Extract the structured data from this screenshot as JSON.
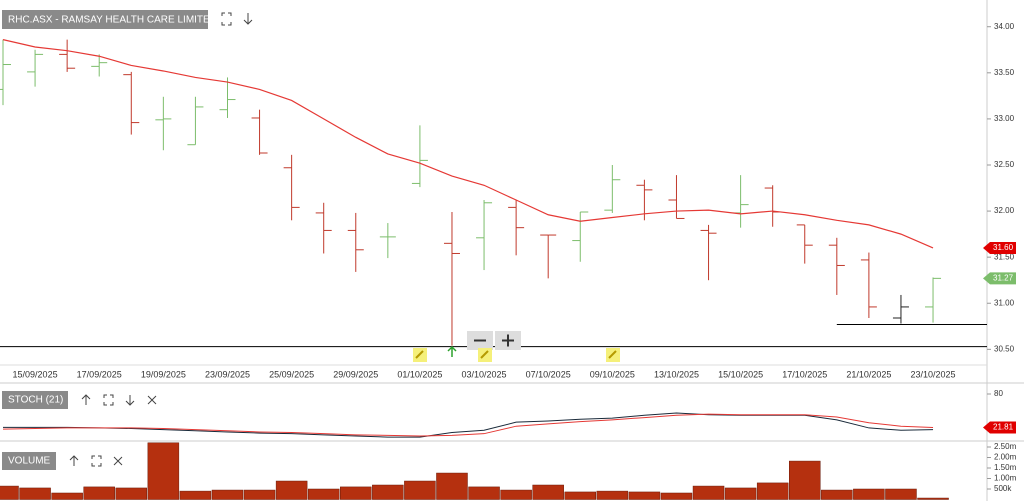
{
  "chart_data": [
    {
      "type": "ohlc",
      "title": "RHC.ASX - RAMSAY HEALTH CARE LIMITED",
      "categories": [
        null,
        "15/09/2025",
        null,
        "17/09/2025",
        null,
        "19/09/2025",
        null,
        "23/09/2025",
        null,
        "25/09/2025",
        null,
        "29/09/2025",
        null,
        "01/10/2025",
        null,
        "03/10/2025",
        null,
        "07/10/2025",
        null,
        "09/10/2025",
        null,
        "13/10/2025",
        null,
        "15/10/2025",
        null,
        "17/10/2025",
        null,
        "21/10/2025",
        null,
        "23/10/2025"
      ],
      "open": [
        33.32,
        33.51,
        33.7,
        33.57,
        33.48,
        32.99,
        32.72,
        33.1,
        33.01,
        32.47,
        31.98,
        31.79,
        31.72,
        32.3,
        31.65,
        31.71,
        32.04,
        31.74,
        31.68,
        32.01,
        32.28,
        32.12,
        31.79,
        31.98,
        32.25,
        31.85,
        31.63,
        31.47,
        30.84,
        30.96
      ],
      "high": [
        33.86,
        33.75,
        33.86,
        33.7,
        33.51,
        33.24,
        33.24,
        33.45,
        33.1,
        32.61,
        32.09,
        31.98,
        31.87,
        32.93,
        31.99,
        32.12,
        32.12,
        31.74,
        31.99,
        32.5,
        32.34,
        32.39,
        31.85,
        32.39,
        32.28,
        31.85,
        31.71,
        31.55,
        31.09,
        31.28
      ],
      "low": [
        33.15,
        33.35,
        33.51,
        33.46,
        32.83,
        32.66,
        32.72,
        33.01,
        32.61,
        31.9,
        31.54,
        31.34,
        31.49,
        32.26,
        30.54,
        31.36,
        31.52,
        31.27,
        31.45,
        31.98,
        31.9,
        31.92,
        31.25,
        31.82,
        31.83,
        31.43,
        31.09,
        30.84,
        30.78,
        30.79
      ],
      "close": [
        33.59,
        33.7,
        33.55,
        33.61,
        32.96,
        33.0,
        33.13,
        33.21,
        32.63,
        32.04,
        31.79,
        31.58,
        31.72,
        32.55,
        31.54,
        32.09,
        31.82,
        31.74,
        31.99,
        32.34,
        32.23,
        31.92,
        31.76,
        32.07,
        31.99,
        31.63,
        31.41,
        30.96,
        30.96,
        31.27
      ],
      "colors": [
        "#7cbd6b",
        "#7cbd6b",
        "#c0392b",
        "#7cbd6b",
        "#c0392b",
        "#7cbd6b",
        "#7cbd6b",
        "#7cbd6b",
        "#c0392b",
        "#c0392b",
        "#c0392b",
        "#c0392b",
        "#7cbd6b",
        "#7cbd6b",
        "#c0392b",
        "#7cbd6b",
        "#c0392b",
        "#c0392b",
        "#7cbd6b",
        "#7cbd6b",
        "#c0392b",
        "#c0392b",
        "#c0392b",
        "#7cbd6b",
        "#c0392b",
        "#c0392b",
        "#c0392b",
        "#c0392b",
        "#222222",
        "#7cbd6b"
      ],
      "ma": {
        "color": "#e53935",
        "values": [
          33.86,
          33.78,
          33.74,
          33.68,
          33.58,
          33.52,
          33.45,
          33.4,
          33.32,
          33.2,
          33.0,
          32.8,
          32.62,
          32.52,
          32.38,
          32.28,
          32.12,
          31.96,
          31.89,
          31.93,
          31.97,
          32.0,
          32.01,
          31.97,
          32.0,
          31.96,
          31.9,
          31.85,
          31.75,
          31.6
        ]
      },
      "flags": [
        {
          "value": 31.6,
          "label": "31.60",
          "color": "#e00000"
        },
        {
          "value": 31.27,
          "label": "31.27",
          "color": "#7cbd6b"
        }
      ],
      "hlines": [
        {
          "value": 30.53,
          "start": 0,
          "color": "#000000"
        },
        {
          "value": 30.77,
          "start": 26,
          "color": "#000000"
        }
      ],
      "ylim": [
        30.33,
        34.29
      ],
      "yticks": [
        {
          "value": 30.5,
          "label": "30.50"
        },
        {
          "value": 31,
          "label": "31.00"
        },
        {
          "value": 31.5,
          "label": "31.50"
        },
        {
          "value": 32,
          "label": "32.00"
        },
        {
          "value": 32.5,
          "label": "32.50"
        },
        {
          "value": 33,
          "label": "33.00"
        },
        {
          "value": 33.5,
          "label": "33.50"
        },
        {
          "value": 34,
          "label": "34.00"
        }
      ]
    },
    {
      "type": "line",
      "title": "STOCH (21)",
      "series": [
        {
          "color": "#1a2a3a",
          "values": [
            22,
            22,
            22,
            21,
            20,
            18,
            16,
            14,
            12,
            11,
            9,
            7,
            5,
            5,
            13,
            17,
            31,
            33,
            36,
            38,
            43,
            47,
            44,
            43,
            43,
            43,
            35,
            21,
            17,
            18
          ]
        },
        {
          "color": "#e53935",
          "values": [
            19,
            20,
            21,
            21,
            21,
            20,
            18,
            16,
            14,
            13,
            11,
            9,
            8,
            7,
            8,
            11,
            24,
            28,
            32,
            35,
            39,
            43,
            45,
            44,
            44,
            44,
            40,
            30,
            24,
            21.81
          ]
        }
      ],
      "flags": [
        {
          "value": 21.81,
          "label": "21.81",
          "color": "#e00000"
        }
      ],
      "ylim": [
        0,
        100
      ],
      "yticks": [
        80
      ]
    },
    {
      "type": "bar",
      "title": "VOLUME",
      "color": "#b5300f",
      "values": [
        640000,
        550000,
        310000,
        600000,
        550000,
        2700000,
        400000,
        450000,
        450000,
        880000,
        500000,
        600000,
        690000,
        880000,
        1260000,
        600000,
        450000,
        690000,
        360000,
        400000,
        360000,
        310000,
        640000,
        550000,
        790000,
        1830000,
        450000,
        500000,
        500000,
        70000
      ],
      "ylim": [
        0,
        2700000
      ],
      "yticks": [
        {
          "value": 500000,
          "label": "500k"
        },
        {
          "value": 1000000,
          "label": "1.00m"
        },
        {
          "value": 1500000,
          "label": "1.50m"
        },
        {
          "value": 2000000,
          "label": "2.00m"
        },
        {
          "value": 2500000,
          "label": "2.50m"
        }
      ]
    }
  ]
}
